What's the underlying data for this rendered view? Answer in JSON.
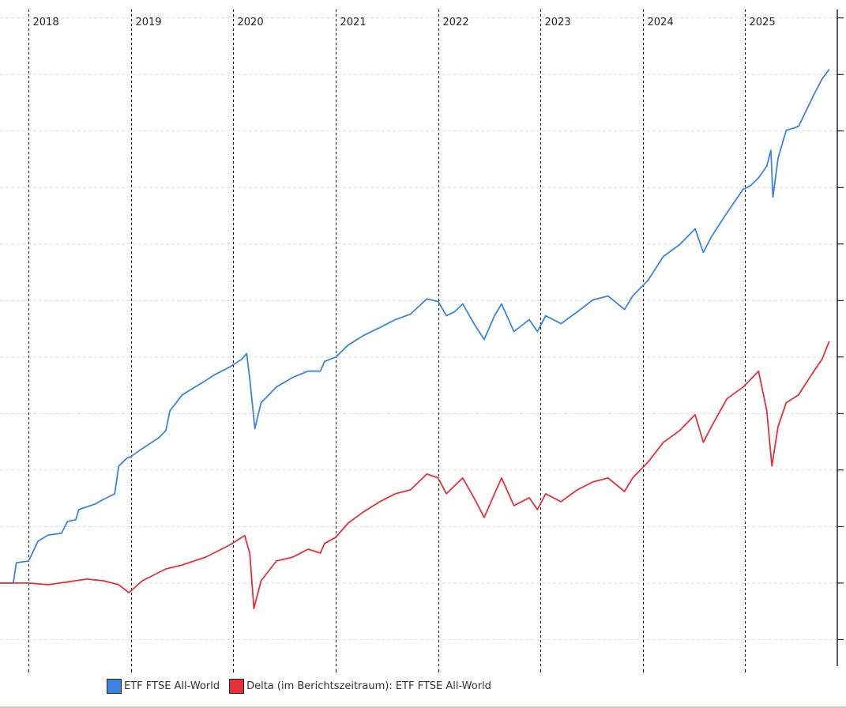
{
  "chart_data": {
    "type": "line",
    "title": "",
    "xlabel": "",
    "ylabel": "",
    "x_tick_labels": [
      "2018",
      "2019",
      "2020",
      "2021",
      "2022",
      "2023",
      "2024",
      "2025"
    ],
    "x_ticks": [
      2018,
      2019,
      2020,
      2021,
      2022,
      2023,
      2024,
      2025
    ],
    "xlim": [
      2017.72,
      2026.0
    ],
    "ylim": [
      -1.47,
      10.15
    ],
    "y_gridlines": [
      -1,
      0,
      1,
      2,
      3,
      4,
      5,
      6,
      7,
      8,
      9,
      10
    ],
    "y_tick_labels_visible": false,
    "grid": true,
    "legend_position": "bottom",
    "series": [
      {
        "name": "ETF FTSE All-World",
        "color": "#3a84e0",
        "x": [
          2017.72,
          2017.85,
          2017.88,
          2018,
          2018.09,
          2018.19,
          2018.32,
          2018.38,
          2018.46,
          2018.49,
          2018.65,
          2018.73,
          2018.84,
          2018.88,
          2018.96,
          2019,
          2019.11,
          2019.27,
          2019.34,
          2019.38,
          2019.5,
          2019.69,
          2019.81,
          2019.96,
          2020.08,
          2020.13,
          2020.16,
          2020.21,
          2020.27,
          2020.42,
          2020.58,
          2020.73,
          2020.85,
          2020.89,
          2021,
          2021.12,
          2021.27,
          2021.43,
          2021.58,
          2021.73,
          2021.89,
          2022,
          2022.08,
          2022.16,
          2022.24,
          2022.35,
          2022.45,
          2022.55,
          2022.62,
          2022.74,
          2022.89,
          2022.97,
          2023.05,
          2023.2,
          2023.36,
          2023.51,
          2023.66,
          2023.82,
          2023.9,
          2024.05,
          2024.2,
          2024.36,
          2024.51,
          2024.59,
          2024.67,
          2024.82,
          2024.98,
          2025.05,
          2025.13,
          2025.21,
          2025.25,
          2025.27,
          2025.32,
          2025.4,
          2025.52,
          2025.67,
          2025.75,
          2025.82
        ],
        "y": [
          0,
          0,
          0.36,
          0.39,
          0.74,
          0.85,
          0.88,
          1.09,
          1.12,
          1.3,
          1.4,
          1.48,
          1.58,
          2.07,
          2.21,
          2.24,
          2.38,
          2.57,
          2.7,
          3.05,
          3.33,
          3.54,
          3.68,
          3.82,
          3.96,
          4.06,
          3.61,
          2.73,
          3.19,
          3.47,
          3.64,
          3.75,
          3.75,
          3.92,
          4.0,
          4.21,
          4.38,
          4.52,
          4.66,
          4.76,
          5.03,
          4.98,
          4.73,
          4.8,
          4.94,
          4.59,
          4.31,
          4.73,
          4.94,
          4.45,
          4.66,
          4.45,
          4.73,
          4.59,
          4.8,
          5.01,
          5.08,
          4.84,
          5.08,
          5.36,
          5.78,
          5.99,
          6.27,
          5.85,
          6.13,
          6.55,
          6.97,
          7.03,
          7.17,
          7.38,
          7.66,
          6.83,
          7.52,
          8.01,
          8.08,
          8.64,
          8.92,
          9.09
        ]
      },
      {
        "name": "Delta (im Berichtszeitraum): ETF FTSE All-World",
        "color": "#e8303a",
        "x": [
          2017.72,
          2018,
          2018.19,
          2018.34,
          2018.57,
          2018.73,
          2018.88,
          2018.98,
          2019.11,
          2019.34,
          2019.5,
          2019.73,
          2019.96,
          2020.11,
          2020.16,
          2020.2,
          2020.27,
          2020.42,
          2020.58,
          2020.73,
          2020.85,
          2020.89,
          2021,
          2021.12,
          2021.27,
          2021.43,
          2021.58,
          2021.73,
          2021.89,
          2022,
          2022.08,
          2022.16,
          2022.24,
          2022.35,
          2022.45,
          2022.55,
          2022.62,
          2022.74,
          2022.89,
          2022.97,
          2023.05,
          2023.2,
          2023.36,
          2023.51,
          2023.66,
          2023.82,
          2023.9,
          2024.05,
          2024.2,
          2024.36,
          2024.51,
          2024.59,
          2024.67,
          2024.82,
          2024.98,
          2025.13,
          2025.17,
          2025.21,
          2025.26,
          2025.32,
          2025.4,
          2025.52,
          2025.67,
          2025.75,
          2025.82
        ],
        "y": [
          0,
          0,
          -0.03,
          0.01,
          0.07,
          0.04,
          -0.03,
          -0.17,
          0.04,
          0.25,
          0.32,
          0.46,
          0.67,
          0.84,
          0.53,
          -0.45,
          0.04,
          0.39,
          0.46,
          0.6,
          0.53,
          0.7,
          0.81,
          1.06,
          1.26,
          1.44,
          1.58,
          1.65,
          1.93,
          1.86,
          1.58,
          1.72,
          1.86,
          1.51,
          1.16,
          1.58,
          1.86,
          1.37,
          1.51,
          1.3,
          1.58,
          1.44,
          1.65,
          1.79,
          1.86,
          1.62,
          1.86,
          2.14,
          2.49,
          2.7,
          2.98,
          2.49,
          2.77,
          3.26,
          3.47,
          3.75,
          3.4,
          3.05,
          2.07,
          2.77,
          3.19,
          3.33,
          3.75,
          3.96,
          4.28
        ]
      }
    ]
  }
}
